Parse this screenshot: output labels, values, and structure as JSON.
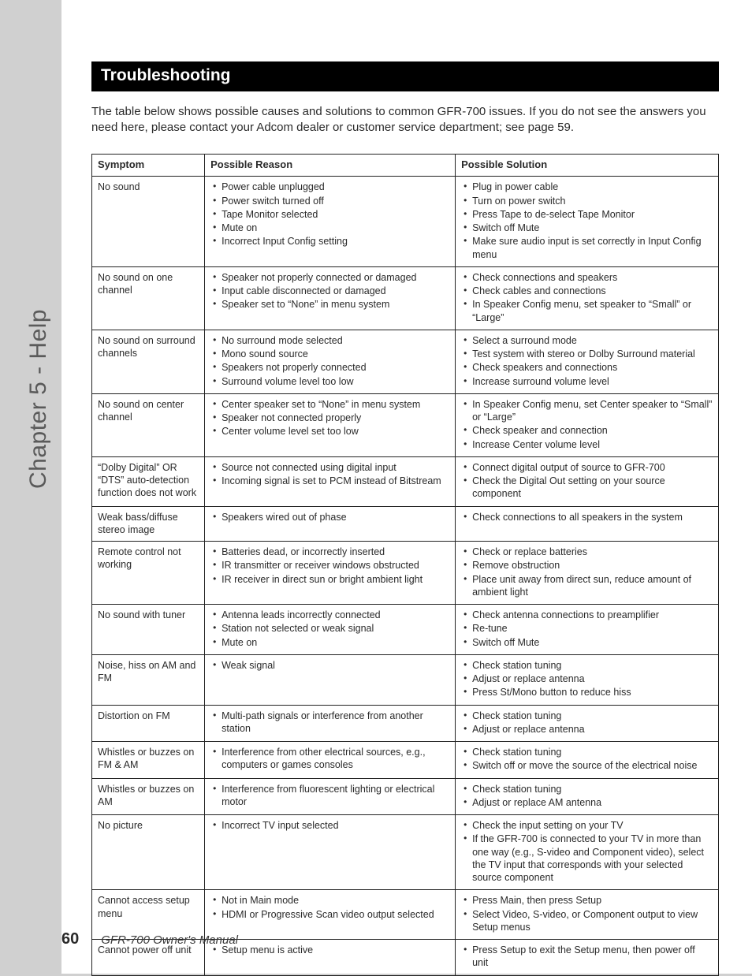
{
  "sidebar": {
    "chapter_title": "Chapter 5 - Help"
  },
  "header": {
    "title": "Troubleshooting"
  },
  "intro": "The table below shows possible causes and solutions to common GFR-700 issues. If you do not see the answers you need here, please contact your Adcom dealer or customer service department; see page 59.",
  "table": {
    "columns": [
      "Symptom",
      "Possible Reason",
      "Possible Solution"
    ],
    "rows": [
      {
        "symptom": "No sound",
        "reasons": [
          "Power cable unplugged",
          "Power switch turned off",
          "Tape Monitor selected",
          "Mute on",
          "Incorrect Input Config setting"
        ],
        "solutions": [
          "Plug in power cable",
          "Turn on power switch",
          "Press Tape to de-select Tape Monitor",
          "Switch off Mute",
          "Make sure audio input is set correctly in Input Config menu"
        ]
      },
      {
        "symptom": "No sound on one channel",
        "reasons": [
          "Speaker not properly connected or damaged",
          "Input cable disconnected or damaged",
          "Speaker set to “None” in menu system"
        ],
        "solutions": [
          "Check connections and speakers",
          "Check cables and connections",
          "In Speaker Config menu, set speaker to “Small” or “Large”"
        ]
      },
      {
        "symptom": "No sound on surround channels",
        "reasons": [
          "No surround mode selected",
          "Mono sound source",
          "Speakers not properly connected",
          "Surround volume level too low"
        ],
        "solutions": [
          "Select a surround mode",
          "Test system with stereo or Dolby Surround material",
          "Check speakers and connections",
          "Increase surround volume level"
        ]
      },
      {
        "symptom": "No sound on center channel",
        "reasons": [
          "Center speaker set to “None” in menu system",
          "Speaker not connected properly",
          "Center volume level set too low"
        ],
        "solutions": [
          "In Speaker Config menu, set Center speaker to “Small” or “Large”",
          "Check speaker and connection",
          "Increase Center volume level"
        ]
      },
      {
        "symptom": "“Dolby Digital” OR “DTS” auto-detection function does not work",
        "reasons": [
          "Source not connected using digital input",
          "Incoming signal is set to PCM instead of Bitstream"
        ],
        "solutions": [
          "Connect digital output of source to GFR-700",
          "Check the Digital Out setting on your source component"
        ]
      },
      {
        "symptom": "Weak bass/diffuse stereo image",
        "reasons": [
          "Speakers wired out of phase"
        ],
        "solutions": [
          "Check connections to all speakers in the system"
        ]
      },
      {
        "symptom": "Remote control not working",
        "reasons": [
          "Batteries dead, or incorrectly inserted",
          "IR transmitter or receiver windows obstructed",
          "IR receiver in direct sun or bright ambient light"
        ],
        "solutions": [
          "Check or replace batteries",
          "Remove obstruction",
          "Place unit away from direct sun, reduce amount of ambient light"
        ]
      },
      {
        "symptom": "No sound with tuner",
        "reasons": [
          "Antenna leads incorrectly connected",
          "Station not selected or weak signal",
          "Mute on"
        ],
        "solutions": [
          "Check antenna connections to preamplifier",
          "Re-tune",
          "Switch off Mute"
        ]
      },
      {
        "symptom": "Noise, hiss on AM and FM",
        "reasons": [
          "Weak signal"
        ],
        "solutions": [
          "Check station tuning",
          "Adjust or replace antenna",
          "Press St/Mono button to reduce hiss"
        ]
      },
      {
        "symptom": "Distortion on FM",
        "reasons": [
          "Multi-path signals or interference from another station"
        ],
        "solutions": [
          "Check station tuning",
          "Adjust or replace antenna"
        ]
      },
      {
        "symptom": "Whistles or buzzes on FM & AM",
        "reasons": [
          "Interference from other electrical sources, e.g., computers or games consoles"
        ],
        "solutions": [
          "Check station tuning",
          "Switch off or move the source of the electrical noise"
        ]
      },
      {
        "symptom": "Whistles or buzzes on AM",
        "reasons": [
          "Interference from fluorescent lighting or electrical motor"
        ],
        "solutions": [
          "Check station tuning",
          "Adjust or replace AM antenna"
        ]
      },
      {
        "symptom": "No picture",
        "reasons": [
          "Incorrect TV input selected"
        ],
        "solutions": [
          "Check the input setting on your TV",
          "If the GFR-700 is connected to your TV in more than one way (e.g., S-video and Component video), select the TV input that corresponds with your selected source component"
        ]
      },
      {
        "symptom": "Cannot access setup menu",
        "reasons": [
          "Not in Main mode",
          "HDMI or Progressive Scan video output selected"
        ],
        "solutions": [
          "Press Main, then press Setup",
          "Select Video, S-video, or Component output to view Setup menus"
        ]
      },
      {
        "symptom": "Cannot power off unit",
        "reasons": [
          "Setup menu is active"
        ],
        "solutions": [
          "Press Setup to exit the Setup menu, then power off unit"
        ]
      }
    ]
  },
  "footer": {
    "page_number": "60",
    "manual_title": "GFR-700 Owner's Manual"
  },
  "style": {
    "page_bg": "#ffffff",
    "gutter_bg": "#d0d0d0",
    "header_bg": "#000000",
    "header_fg": "#ffffff",
    "body_color": "#2a2a2a",
    "sidebar_color": "#5a5a5a",
    "border_color": "#222222",
    "body_fontsize_pt": 12.5,
    "header_fontsize_pt": 21,
    "sidebar_fontsize_pt": 30
  }
}
